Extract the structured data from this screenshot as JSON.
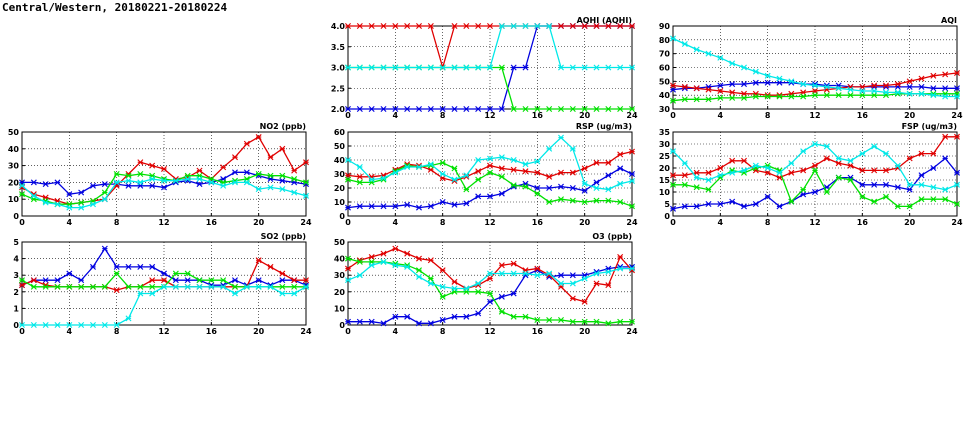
{
  "page_title": "Central/Western, 20180221-20180224",
  "colors": {
    "blue": "#0000e0",
    "red": "#e00000",
    "green": "#00e000",
    "cyan": "#00e8e8",
    "grid": "#000000"
  },
  "chart_data": [
    {
      "id": "aqhi",
      "type": "line",
      "title": "AQHI (AQHI)",
      "xlim": [
        0,
        24
      ],
      "ylim": [
        2,
        4
      ],
      "xticks": [
        0,
        4,
        8,
        12,
        16,
        20,
        24
      ],
      "yticks": [
        "2.0",
        "2.5",
        "3.0",
        "3.5",
        "4.0"
      ],
      "grid": true,
      "x": [
        0,
        1,
        2,
        3,
        4,
        5,
        6,
        7,
        8,
        9,
        10,
        11,
        12,
        13,
        14,
        15,
        16,
        17,
        18,
        19,
        20,
        21,
        22,
        23,
        24
      ],
      "series": [
        {
          "color": "blue",
          "values": [
            2,
            2,
            2,
            2,
            2,
            2,
            2,
            2,
            2,
            2,
            2,
            2,
            2,
            2,
            3,
            3,
            4,
            4,
            4,
            4,
            4,
            4,
            4,
            4,
            4
          ]
        },
        {
          "color": "red",
          "values": [
            4,
            4,
            4,
            4,
            4,
            4,
            4,
            4,
            3,
            4,
            4,
            4,
            4,
            4,
            4,
            4,
            4,
            4,
            4,
            4,
            4,
            4,
            4,
            4,
            4
          ]
        },
        {
          "color": "green",
          "values": [
            3,
            3,
            3,
            3,
            3,
            3,
            3,
            3,
            3,
            3,
            3,
            3,
            3,
            3,
            2,
            2,
            2,
            2,
            2,
            2,
            2,
            2,
            2,
            2,
            2
          ]
        },
        {
          "color": "cyan",
          "values": [
            3,
            3,
            3,
            3,
            3,
            3,
            3,
            3,
            3,
            3,
            3,
            3,
            3,
            4,
            4,
            4,
            4,
            4,
            3,
            3,
            3,
            3,
            3,
            3,
            3
          ]
        }
      ]
    },
    {
      "id": "aqi",
      "type": "line",
      "title": "AQI",
      "xlim": [
        0,
        24
      ],
      "ylim": [
        30,
        90
      ],
      "xticks": [
        0,
        4,
        8,
        12,
        16,
        20,
        24
      ],
      "yticks": [
        "30",
        "40",
        "50",
        "60",
        "70",
        "80",
        "90"
      ],
      "grid": true,
      "x": [
        0,
        1,
        2,
        3,
        4,
        5,
        6,
        7,
        8,
        9,
        10,
        11,
        12,
        13,
        14,
        15,
        16,
        17,
        18,
        19,
        20,
        21,
        22,
        23,
        24
      ],
      "series": [
        {
          "color": "blue",
          "values": [
            44,
            45,
            45,
            46,
            47,
            48,
            48,
            49,
            49,
            49,
            49,
            48,
            48,
            47,
            47,
            46,
            46,
            46,
            46,
            46,
            46,
            46,
            45,
            45,
            45
          ]
        },
        {
          "color": "red",
          "values": [
            47,
            46,
            45,
            44,
            43,
            42,
            41,
            41,
            40,
            40,
            41,
            42,
            43,
            44,
            45,
            46,
            46,
            47,
            47,
            48,
            50,
            52,
            54,
            55,
            56
          ]
        },
        {
          "color": "green",
          "values": [
            36,
            37,
            37,
            37,
            38,
            38,
            38,
            39,
            39,
            39,
            39,
            39,
            40,
            40,
            40,
            40,
            40,
            40,
            40,
            41,
            41,
            41,
            41,
            41,
            41
          ]
        },
        {
          "color": "cyan",
          "values": [
            81,
            77,
            73,
            70,
            67,
            63,
            60,
            57,
            54,
            52,
            50,
            48,
            47,
            46,
            45,
            44,
            43,
            43,
            42,
            42,
            41,
            41,
            40,
            39,
            39
          ]
        }
      ]
    },
    {
      "id": "no2",
      "type": "line",
      "title": "NO2 (ppb)",
      "xlim": [
        0,
        24
      ],
      "ylim": [
        0,
        50
      ],
      "xticks": [
        0,
        4,
        8,
        12,
        16,
        20,
        24
      ],
      "yticks": [
        "0",
        "10",
        "20",
        "30",
        "40",
        "50"
      ],
      "grid": true,
      "x": [
        0,
        1,
        2,
        3,
        4,
        5,
        6,
        7,
        8,
        9,
        10,
        11,
        12,
        13,
        14,
        15,
        16,
        17,
        18,
        19,
        20,
        21,
        22,
        23,
        24
      ],
      "series": [
        {
          "color": "blue",
          "values": [
            20,
            20,
            19,
            20,
            13,
            14,
            18,
            19,
            19,
            18,
            18,
            18,
            17,
            20,
            21,
            19,
            20,
            22,
            26,
            26,
            24,
            22,
            21,
            20,
            19
          ]
        },
        {
          "color": "red",
          "values": [
            17,
            13,
            11,
            9,
            7,
            8,
            9,
            10,
            18,
            25,
            32,
            30,
            28,
            22,
            23,
            27,
            22,
            29,
            35,
            43,
            47,
            35,
            40,
            27,
            32
          ]
        },
        {
          "color": "green",
          "values": [
            13,
            10,
            9,
            7,
            7,
            8,
            9,
            14,
            25,
            24,
            25,
            24,
            22,
            21,
            24,
            24,
            22,
            20,
            21,
            22,
            25,
            24,
            24,
            22,
            20
          ]
        },
        {
          "color": "cyan",
          "values": [
            18,
            12,
            8,
            7,
            5,
            5,
            7,
            10,
            20,
            21,
            20,
            22,
            21,
            21,
            22,
            22,
            20,
            18,
            20,
            20,
            16,
            17,
            16,
            14,
            12
          ]
        }
      ]
    },
    {
      "id": "rsp",
      "type": "line",
      "title": "RSP (ug/m3)",
      "xlim": [
        0,
        24
      ],
      "ylim": [
        0,
        60
      ],
      "xticks": [
        0,
        4,
        8,
        12,
        16,
        20,
        24
      ],
      "yticks": [
        "0",
        "10",
        "20",
        "30",
        "40",
        "50",
        "60"
      ],
      "grid": true,
      "x": [
        0,
        1,
        2,
        3,
        4,
        5,
        6,
        7,
        8,
        9,
        10,
        11,
        12,
        13,
        14,
        15,
        16,
        17,
        18,
        19,
        20,
        21,
        22,
        23,
        24
      ],
      "series": [
        {
          "color": "blue",
          "values": [
            6,
            7,
            7,
            7,
            7,
            8,
            6,
            7,
            10,
            8,
            9,
            14,
            14,
            16,
            21,
            23,
            20,
            20,
            21,
            20,
            18,
            24,
            29,
            34,
            30
          ]
        },
        {
          "color": "red",
          "values": [
            29,
            28,
            28,
            29,
            33,
            37,
            36,
            33,
            27,
            25,
            28,
            32,
            36,
            34,
            33,
            32,
            31,
            28,
            31,
            31,
            34,
            38,
            38,
            44,
            46
          ]
        },
        {
          "color": "green",
          "values": [
            26,
            24,
            24,
            26,
            32,
            36,
            35,
            36,
            38,
            34,
            19,
            26,
            31,
            28,
            22,
            21,
            16,
            10,
            12,
            11,
            10,
            11,
            11,
            10,
            7
          ]
        },
        {
          "color": "cyan",
          "values": [
            40,
            35,
            26,
            27,
            31,
            35,
            35,
            37,
            30,
            26,
            29,
            40,
            41,
            42,
            40,
            37,
            39,
            48,
            56,
            48,
            23,
            20,
            19,
            23,
            25
          ]
        }
      ]
    },
    {
      "id": "fsp",
      "type": "line",
      "title": "FSP (ug/m3)",
      "xlim": [
        0,
        24
      ],
      "ylim": [
        0,
        35
      ],
      "xticks": [
        0,
        4,
        8,
        12,
        16,
        20,
        24
      ],
      "yticks": [
        "0",
        "5",
        "10",
        "15",
        "20",
        "25",
        "30",
        "35"
      ],
      "grid": true,
      "x": [
        0,
        1,
        2,
        3,
        4,
        5,
        6,
        7,
        8,
        9,
        10,
        11,
        12,
        13,
        14,
        15,
        16,
        17,
        18,
        19,
        20,
        21,
        22,
        23,
        24
      ],
      "series": [
        {
          "color": "blue",
          "values": [
            3,
            4,
            4,
            5,
            5,
            6,
            4,
            5,
            8,
            4,
            6,
            9,
            10,
            12,
            16,
            16,
            13,
            13,
            13,
            12,
            11,
            17,
            20,
            24,
            18
          ]
        },
        {
          "color": "red",
          "values": [
            17,
            17,
            18,
            18,
            20,
            23,
            23,
            19,
            18,
            16,
            18,
            19,
            21,
            24,
            22,
            21,
            19,
            19,
            19,
            20,
            24,
            26,
            26,
            33,
            33
          ]
        },
        {
          "color": "green",
          "values": [
            13,
            13,
            12,
            11,
            16,
            19,
            18,
            20,
            21,
            19,
            6,
            11,
            19,
            10,
            16,
            15,
            8,
            6,
            8,
            4,
            4,
            7,
            7,
            7,
            5
          ]
        },
        {
          "color": "cyan",
          "values": [
            27,
            22,
            16,
            15,
            17,
            18,
            19,
            21,
            20,
            18,
            22,
            27,
            30,
            29,
            24,
            23,
            26,
            29,
            26,
            21,
            13,
            13,
            12,
            11,
            13
          ]
        }
      ]
    },
    {
      "id": "so2",
      "type": "line",
      "title": "SO2 (ppb)",
      "xlim": [
        0,
        24
      ],
      "ylim": [
        0,
        5
      ],
      "xticks": [
        0,
        4,
        8,
        12,
        16,
        20,
        24
      ],
      "yticks": [
        "0",
        "1",
        "2",
        "3",
        "4",
        "5"
      ],
      "grid": true,
      "x": [
        0,
        1,
        2,
        3,
        4,
        5,
        6,
        7,
        8,
        9,
        10,
        11,
        12,
        13,
        14,
        15,
        16,
        17,
        18,
        19,
        20,
        21,
        22,
        23,
        24
      ],
      "series": [
        {
          "color": "blue",
          "values": [
            2.4,
            2.7,
            2.7,
            2.7,
            3.1,
            2.7,
            3.5,
            4.6,
            3.5,
            3.5,
            3.5,
            3.5,
            3.1,
            2.7,
            2.7,
            2.7,
            2.4,
            2.4,
            2.7,
            2.4,
            2.7,
            2.4,
            2.7,
            2.7,
            2.4
          ]
        },
        {
          "color": "red",
          "values": [
            2.4,
            2.7,
            2.4,
            2.3,
            2.3,
            2.3,
            2.3,
            2.3,
            2.1,
            2.3,
            2.3,
            2.7,
            2.7,
            2.3,
            2.3,
            2.3,
            2.3,
            2.3,
            2.3,
            2.3,
            3.9,
            3.5,
            3.1,
            2.7,
            2.7
          ]
        },
        {
          "color": "green",
          "values": [
            2.7,
            2.3,
            2.3,
            2.3,
            2.3,
            2.3,
            2.3,
            2.3,
            3.1,
            2.3,
            2.3,
            2.3,
            2.3,
            3.1,
            3.1,
            2.7,
            2.7,
            2.7,
            2.3,
            2.3,
            2.3,
            2.3,
            2.3,
            2.3,
            2.3
          ]
        },
        {
          "color": "cyan",
          "values": [
            0,
            0,
            0,
            0,
            0,
            0,
            0,
            0,
            0,
            0.4,
            1.9,
            1.9,
            2.3,
            2.3,
            2.3,
            2.3,
            2.3,
            2.3,
            1.9,
            2.3,
            2.3,
            2.3,
            1.9,
            1.9,
            2.3
          ]
        }
      ]
    },
    {
      "id": "o3",
      "type": "line",
      "title": "O3 (ppb)",
      "xlim": [
        0,
        24
      ],
      "ylim": [
        0,
        50
      ],
      "xticks": [
        0,
        4,
        8,
        12,
        16,
        20,
        24
      ],
      "yticks": [
        "0",
        "10",
        "20",
        "30",
        "40",
        "50"
      ],
      "grid": true,
      "x": [
        0,
        1,
        2,
        3,
        4,
        5,
        6,
        7,
        8,
        9,
        10,
        11,
        12,
        13,
        14,
        15,
        16,
        17,
        18,
        19,
        20,
        21,
        22,
        23,
        24
      ],
      "series": [
        {
          "color": "blue",
          "values": [
            2,
            2,
            2,
            1,
            5,
            5,
            1,
            1,
            3,
            5,
            5,
            7,
            14,
            17,
            19,
            30,
            33,
            29,
            30,
            30,
            30,
            32,
            34,
            35,
            35
          ]
        },
        {
          "color": "red",
          "values": [
            34,
            39,
            41,
            43,
            46,
            43,
            40,
            39,
            33,
            26,
            22,
            24,
            28,
            36,
            37,
            33,
            34,
            30,
            23,
            16,
            14,
            25,
            24,
            41,
            33
          ]
        },
        {
          "color": "green",
          "values": [
            40,
            38,
            38,
            38,
            37,
            36,
            33,
            28,
            17,
            20,
            20,
            20,
            19,
            8,
            5,
            5,
            3,
            3,
            3,
            2,
            2,
            2,
            1,
            2,
            2
          ]
        },
        {
          "color": "cyan",
          "values": [
            27,
            30,
            36,
            38,
            36,
            35,
            29,
            25,
            23,
            22,
            22,
            25,
            31,
            31,
            31,
            31,
            30,
            31,
            25,
            25,
            28,
            31,
            32,
            34,
            34
          ]
        }
      ]
    }
  ]
}
